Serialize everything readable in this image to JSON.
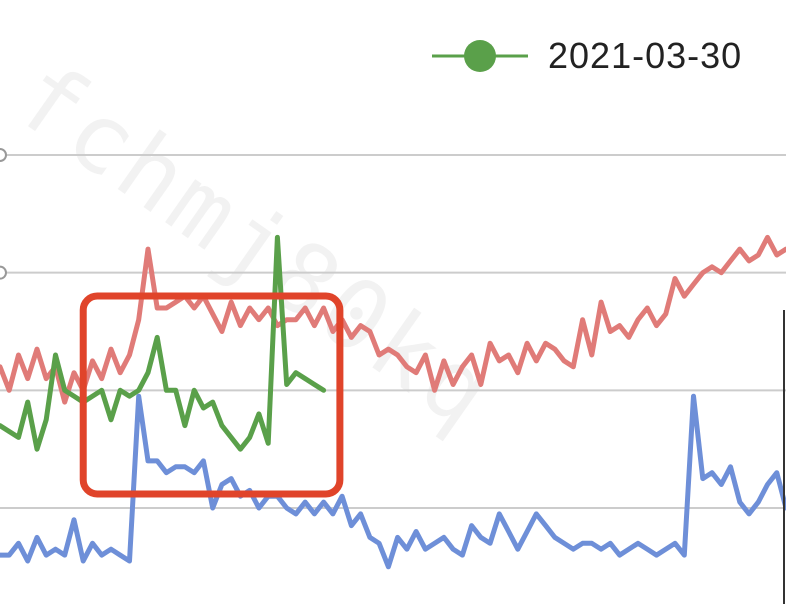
{
  "watermark": "fchmj80kq",
  "colors": {
    "series_green": "#5aa04a",
    "series_red": "#e07b78",
    "series_blue": "#6e8fd8",
    "grid": "#cccccc",
    "highlight": "#e0442a"
  },
  "legend": {
    "label": "2021-03-30"
  },
  "chart_data": {
    "type": "line",
    "title": "",
    "xlabel": "",
    "ylabel": "",
    "ylim": [
      0,
      5
    ],
    "grid": true,
    "legend_position": "top-right",
    "highlight_box": {
      "x_range": [
        9,
        36
      ],
      "note": ""
    },
    "series": [
      {
        "name": "2021-03-30",
        "color": "#5aa04a",
        "x": [
          0,
          1,
          2,
          3,
          4,
          5,
          6,
          7,
          8,
          9,
          10,
          11,
          12,
          13,
          14,
          15,
          16,
          17,
          18,
          19,
          20,
          21,
          22,
          23,
          24,
          25,
          26,
          27,
          28,
          29,
          30,
          31,
          32,
          33,
          34,
          35
        ],
        "values": [
          1.7,
          1.65,
          1.6,
          1.9,
          1.5,
          1.75,
          2.3,
          2.0,
          1.95,
          1.9,
          1.95,
          2.0,
          1.75,
          2.0,
          1.95,
          2.0,
          2.15,
          2.45,
          2.0,
          2.0,
          1.7,
          2.0,
          1.85,
          1.9,
          1.7,
          1.6,
          1.5,
          1.6,
          1.8,
          1.55,
          3.3,
          2.05,
          2.15,
          2.1,
          2.05,
          2.0
        ]
      },
      {
        "name": "",
        "color": "#e07b78",
        "x": [
          0,
          1,
          2,
          3,
          4,
          5,
          6,
          7,
          8,
          9,
          10,
          11,
          12,
          13,
          14,
          15,
          16,
          17,
          18,
          19,
          20,
          21,
          22,
          23,
          24,
          25,
          26,
          27,
          28,
          29,
          30,
          31,
          32,
          33,
          34,
          35,
          36,
          37,
          38,
          39,
          40,
          41,
          42,
          43,
          44,
          45,
          46,
          47,
          48,
          49,
          50,
          51,
          52,
          53,
          54,
          55,
          56,
          57,
          58,
          59,
          60,
          61,
          62,
          63,
          64,
          65,
          66,
          67,
          68,
          69,
          70,
          71,
          72,
          73,
          74,
          75,
          76,
          77,
          78,
          79,
          80,
          81,
          82,
          83,
          84,
          85
        ],
        "values": [
          2.2,
          2.0,
          2.3,
          2.1,
          2.35,
          2.1,
          2.2,
          1.9,
          2.15,
          2.0,
          2.25,
          2.1,
          2.35,
          2.15,
          2.3,
          2.6,
          3.2,
          2.7,
          2.7,
          2.75,
          2.8,
          2.7,
          2.8,
          2.65,
          2.5,
          2.75,
          2.55,
          2.7,
          2.6,
          2.7,
          2.55,
          2.6,
          2.6,
          2.7,
          2.55,
          2.7,
          2.5,
          2.6,
          2.45,
          2.55,
          2.5,
          2.3,
          2.35,
          2.3,
          2.2,
          2.15,
          2.3,
          2.0,
          2.25,
          2.05,
          2.2,
          2.3,
          2.05,
          2.4,
          2.25,
          2.3,
          2.15,
          2.4,
          2.25,
          2.4,
          2.35,
          2.25,
          2.2,
          2.6,
          2.3,
          2.75,
          2.5,
          2.55,
          2.45,
          2.6,
          2.7,
          2.55,
          2.65,
          2.95,
          2.8,
          2.9,
          3.0,
          3.05,
          3.0,
          3.1,
          3.2,
          3.1,
          3.15,
          3.3,
          3.15,
          3.2
        ]
      },
      {
        "name": "",
        "color": "#6e8fd8",
        "x": [
          0,
          1,
          2,
          3,
          4,
          5,
          6,
          7,
          8,
          9,
          10,
          11,
          12,
          13,
          14,
          15,
          16,
          17,
          18,
          19,
          20,
          21,
          22,
          23,
          24,
          25,
          26,
          27,
          28,
          29,
          30,
          31,
          32,
          33,
          34,
          35,
          36,
          37,
          38,
          39,
          40,
          41,
          42,
          43,
          44,
          45,
          46,
          47,
          48,
          49,
          50,
          51,
          52,
          53,
          54,
          55,
          56,
          57,
          58,
          59,
          60,
          61,
          62,
          63,
          64,
          65,
          66,
          67,
          68,
          69,
          70,
          71,
          72,
          73,
          74,
          75,
          76,
          77,
          78,
          79,
          80,
          81,
          82,
          83,
          84,
          85
        ],
        "values": [
          0.6,
          0.6,
          0.7,
          0.55,
          0.75,
          0.6,
          0.65,
          0.6,
          0.9,
          0.55,
          0.7,
          0.6,
          0.65,
          0.6,
          0.55,
          1.95,
          1.4,
          1.4,
          1.3,
          1.35,
          1.35,
          1.3,
          1.4,
          1.0,
          1.2,
          1.25,
          1.1,
          1.15,
          1.0,
          1.1,
          1.1,
          1.0,
          0.95,
          1.05,
          0.95,
          1.05,
          0.95,
          1.1,
          0.85,
          0.95,
          0.75,
          0.7,
          0.5,
          0.75,
          0.65,
          0.8,
          0.65,
          0.7,
          0.75,
          0.65,
          0.6,
          0.85,
          0.75,
          0.7,
          0.95,
          0.8,
          0.65,
          0.8,
          0.95,
          0.85,
          0.75,
          0.7,
          0.65,
          0.7,
          0.7,
          0.65,
          0.7,
          0.6,
          0.65,
          0.7,
          0.65,
          0.6,
          0.65,
          0.7,
          0.6,
          1.95,
          1.25,
          1.3,
          1.2,
          1.35,
          1.05,
          0.95,
          1.05,
          1.2,
          1.3,
          1.0
        ]
      }
    ]
  }
}
